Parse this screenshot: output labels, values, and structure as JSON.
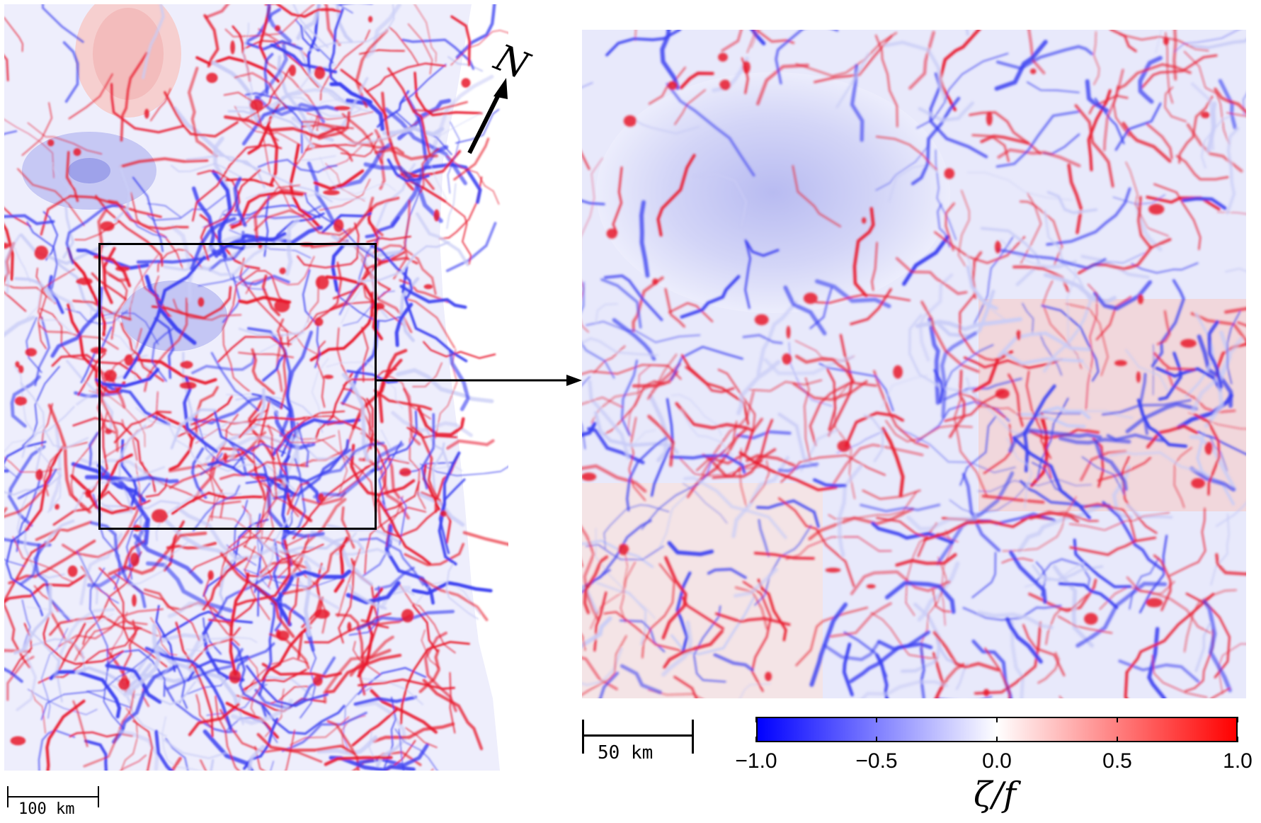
{
  "overview_map": {
    "north_label": "N",
    "scale_label": "100 km"
  },
  "zoom_map": {
    "scale_label": "50 km"
  },
  "colorbar": {
    "title": "ζ/f",
    "tick_labels": [
      "−1.0",
      "−0.5",
      "0.0",
      "0.5",
      "1.0"
    ],
    "tick_values": [
      -1.0,
      -0.5,
      0.0,
      0.5,
      1.0
    ],
    "range": [
      -1.0,
      1.0
    ],
    "color_min": "#0000ff",
    "color_mid": "#ffffff",
    "color_max": "#ff0000"
  },
  "colors": {
    "cyclonic_red": "#e8192c",
    "anticyclonic_blue": "#3a3ff0",
    "light_blue": "#c9ccf6",
    "light_red": "#f7c9c9"
  }
}
